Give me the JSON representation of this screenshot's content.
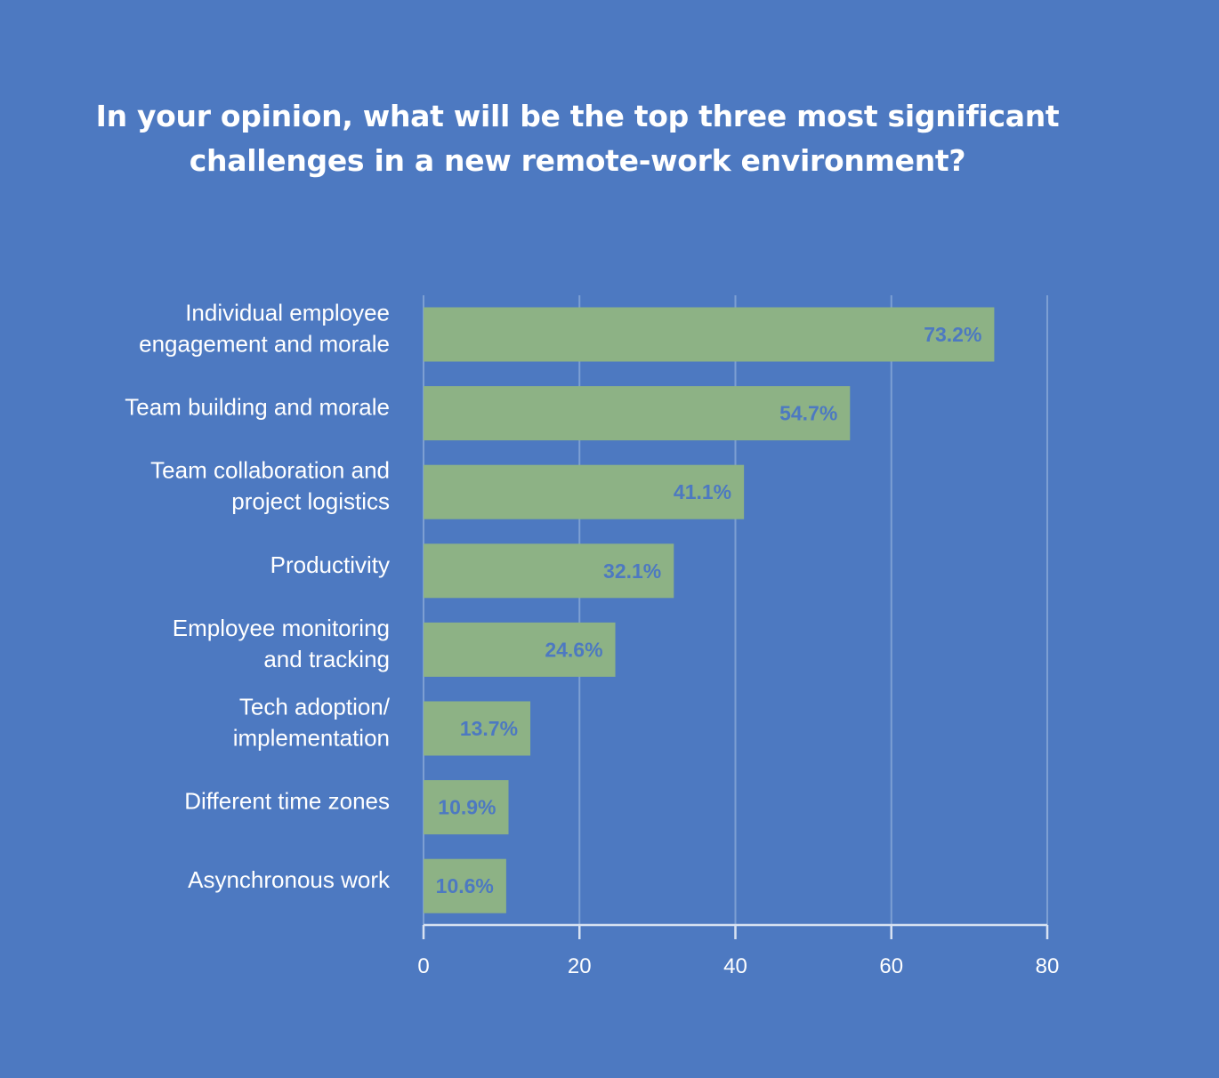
{
  "chart_data": {
    "type": "bar",
    "orientation": "horizontal",
    "title_lines": [
      "In your opinion, what will be the top three most significant",
      "challenges in a new remote-work environment?"
    ],
    "categories": [
      [
        "Individual employee",
        "engagement and morale"
      ],
      [
        "Team building and morale"
      ],
      [
        "Team collaboration and",
        "project logistics"
      ],
      [
        "Productivity"
      ],
      [
        "Employee monitoring",
        "and tracking"
      ],
      [
        "Tech adoption/",
        "implementation"
      ],
      [
        "Different time zones"
      ],
      [
        "Asynchronous work"
      ]
    ],
    "values": [
      73.2,
      54.7,
      41.1,
      32.1,
      24.6,
      13.7,
      10.9,
      10.6
    ],
    "value_labels": [
      "73.2%",
      "54.7%",
      "41.1%",
      "32.1%",
      "24.6%",
      "13.7%",
      "10.9%",
      "10.6%"
    ],
    "xlim": [
      0,
      80
    ],
    "xticks": [
      0,
      20,
      40,
      60,
      80
    ],
    "grid": true,
    "legend": "none",
    "colors": {
      "background": "#4d79c1",
      "bar": "#8db285",
      "value_label": "#4d79c1",
      "grid": "#7d9fd3",
      "axis": "#d8e2f2",
      "text": "#ffffff"
    }
  }
}
